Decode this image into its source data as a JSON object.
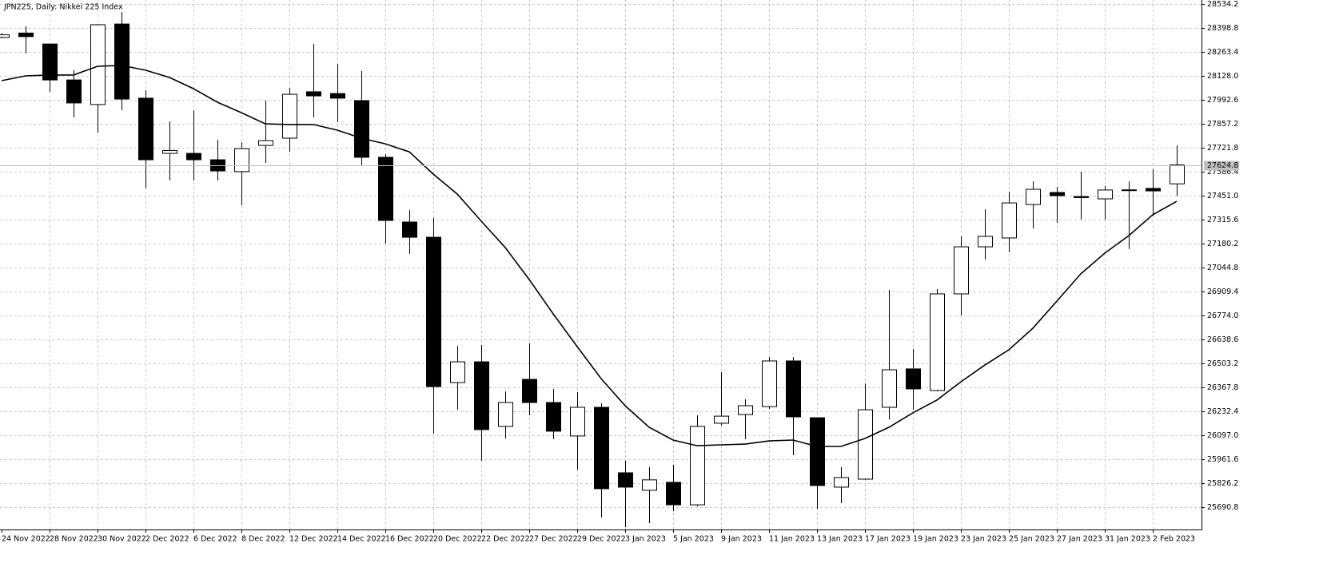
{
  "chart_data": {
    "type": "candlestick",
    "title": "JPN225, Daily:  Nikkei 225 Index",
    "categories": [
      "24 Nov 2022",
      null,
      "28 Nov 2022",
      null,
      "30 Nov 2022",
      null,
      "2 Dec 2022",
      null,
      "6 Dec 2022",
      null,
      "8 Dec 2022",
      null,
      "12 Dec 2022",
      null,
      "14 Dec 2022",
      null,
      "16 Dec 2022",
      null,
      "20 Dec 2022",
      null,
      "22 Dec 2022",
      null,
      "27 Dec 2022",
      null,
      "29 Dec 2022",
      null,
      "3 Jan 2023",
      null,
      "5 Jan 2023",
      null,
      "9 Jan 2023",
      null,
      "11 Jan 2023",
      null,
      "13 Jan 2023",
      null,
      "17 Jan 2023",
      null,
      "19 Jan 2023",
      null,
      "23 Jan 2023",
      null,
      "25 Jan 2023",
      null,
      "27 Jan 2023",
      null,
      "31 Jan 2023",
      null,
      "2 Feb 2023",
      null
    ],
    "open": [
      28345,
      28370,
      28308,
      28105,
      27966,
      28421,
      28002,
      27690,
      27690,
      27654,
      27587,
      27735,
      27776,
      28038,
      28028,
      27988,
      27668,
      27302,
      27216,
      26395,
      26512,
      26147,
      26413,
      26282,
      26093,
      26255,
      25885,
      25786,
      25831,
      25704,
      26165,
      26214,
      26259,
      26517,
      26196,
      25804,
      25849,
      26255,
      26472,
      26350,
      26896,
      27162,
      27212,
      27401,
      27469,
      27446,
      27433,
      27480,
      27492,
      27518
    ],
    "high": [
      28370,
      28408,
      28310,
      28160,
      28420,
      28489,
      28047,
      27871,
      27934,
      27767,
      27753,
      27988,
      28060,
      28308,
      28196,
      28155,
      27686,
      27370,
      27325,
      26602,
      26607,
      26345,
      26616,
      26359,
      26341,
      26278,
      25953,
      25917,
      25930,
      26210,
      26453,
      26300,
      26539,
      26539,
      26196,
      25917,
      26390,
      26918,
      26584,
      26923,
      27221,
      27374,
      27474,
      27532,
      27501,
      27586,
      27505,
      27532,
      27600,
      27735
    ],
    "low": [
      28340,
      28255,
      28038,
      27893,
      27807,
      27934,
      27492,
      27537,
      27537,
      27537,
      27397,
      27636,
      27699,
      27893,
      27866,
      27618,
      27180,
      27122,
      26106,
      26241,
      25953,
      26079,
      26210,
      26075,
      25903,
      25632,
      25578,
      25600,
      25668,
      25695,
      26151,
      26075,
      26246,
      25984,
      25682,
      25713,
      25844,
      26187,
      26241,
      26345,
      26774,
      27090,
      27131,
      27266,
      27298,
      27316,
      27316,
      27149,
      27338,
      27451
    ],
    "close": [
      28360,
      28350,
      28105,
      27975,
      28417,
      27997,
      27654,
      27706,
      27654,
      27591,
      27717,
      27762,
      28024,
      28015,
      28002,
      27668,
      27311,
      27216,
      26372,
      26512,
      26129,
      26282,
      26282,
      26120,
      26255,
      25795,
      25804,
      25845,
      25704,
      26147,
      26205,
      26264,
      26517,
      26201,
      25813,
      25858,
      26241,
      26467,
      26359,
      26896,
      27162,
      27221,
      27410,
      27487,
      27451,
      27440,
      27483,
      27484,
      27478,
      27625
    ],
    "moving_average": [
      28101,
      28128,
      28133,
      28133,
      28182,
      28187,
      28160,
      28119,
      28056,
      27979,
      27920,
      27857,
      27853,
      27853,
      27821,
      27776,
      27744,
      27699,
      27573,
      27460,
      27307,
      27158,
      26977,
      26783,
      26598,
      26417,
      26264,
      26142,
      26070,
      26038,
      26043,
      26047,
      26065,
      26070,
      26034,
      26034,
      26079,
      26142,
      26224,
      26296,
      26399,
      26494,
      26580,
      26702,
      26855,
      27009,
      27126,
      27225,
      27343,
      27419
    ],
    "up_color": "#ffffff",
    "down_color": "#000000",
    "line_color": "#000000",
    "last_price": 27624.8,
    "ylim": [
      25564.5,
      28556.8
    ],
    "yticks": [
      28534.2,
      28398.8,
      28263.4,
      {
        "value": 28128.0,
        "label": "28128.0"
      },
      27992.6,
      27857.2,
      27721.8,
      27586.4,
      {
        "value": 27451.0,
        "label": "27451.0"
      },
      27315.6,
      27180.2,
      27044.8,
      26909.4,
      {
        "value": 26774.0,
        "label": "26774.0"
      },
      26638.6,
      26503.2,
      26367.8,
      26232.4,
      {
        "value": 26097.0,
        "label": "26097.0"
      },
      25961.6,
      25826.2,
      25690.8
    ],
    "grid": true
  }
}
